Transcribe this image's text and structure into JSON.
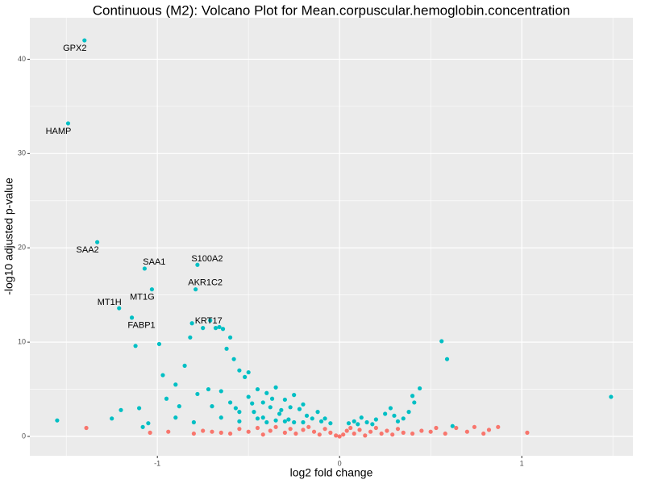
{
  "chart_data": {
    "type": "scatter",
    "title": "Continuous (M2): Volcano Plot for Mean.corpuscular.hemoglobin.concentration",
    "x_label": "log2 fold change",
    "y_label": "-log10 adjusted p-value",
    "xlim": [
      -1.7,
      1.61
    ],
    "ylim": [
      -2.05,
      44.4
    ],
    "xticks": [
      -1,
      0,
      1
    ],
    "yticks": [
      0,
      10,
      20,
      30,
      40
    ],
    "grid": true,
    "series": [
      {
        "color": "#00BFC4",
        "x": [
          -1.4,
          -1.49,
          -1.33,
          -1.07,
          -0.78,
          -0.79,
          -1.03,
          -1.21,
          -1.14,
          -0.71
        ],
        "values": [
          42.0,
          33.2,
          20.6,
          17.8,
          18.2,
          15.6,
          15.6,
          13.6,
          12.6,
          12.3
        ],
        "labels": [
          "GPX2",
          "HAMP",
          "SAA2",
          "SAA1",
          "S100A2",
          "AKR1C2",
          "MT1G",
          "MT1H",
          "FABP1",
          "KRT17"
        ]
      },
      {
        "color": "#00BFC4",
        "x": [
          -1.55,
          -1.25,
          -1.2,
          -1.1,
          -1.05,
          -1.08,
          -1.12,
          -0.99,
          -0.97,
          -0.9,
          -0.85,
          -0.82,
          -0.81,
          -0.75,
          -0.68,
          -0.66,
          -0.64,
          -0.6,
          -0.58,
          -0.62,
          -0.55,
          -0.52,
          -0.5,
          -0.78,
          -0.72,
          -0.7,
          -0.65,
          -0.6,
          -0.55,
          -0.5,
          -0.48,
          -0.45,
          -0.42,
          -0.4,
          -0.38,
          -0.35,
          -0.33,
          -0.3,
          -0.28,
          -0.25,
          -0.22,
          -0.2,
          -0.18,
          -0.15,
          -0.12,
          -0.1,
          -0.08,
          -0.05,
          -0.4,
          -0.35,
          -0.3,
          -0.25,
          -0.2,
          -0.45,
          -0.55,
          -0.65,
          -0.8,
          -0.9,
          -0.95,
          -0.88,
          -0.42,
          -0.32,
          -0.27,
          -0.37,
          -0.47,
          -0.57,
          0.05,
          0.08,
          0.12,
          0.15,
          0.2,
          0.25,
          0.28,
          0.3,
          0.32,
          0.35,
          0.38,
          0.4,
          0.44,
          0.41,
          0.56,
          0.59,
          0.62,
          1.49,
          0.18,
          0.1
        ],
        "values": [
          1.7,
          1.9,
          2.8,
          3.0,
          1.4,
          1.0,
          9.6,
          9.8,
          6.5,
          5.5,
          7.5,
          10.5,
          12.0,
          11.5,
          11.5,
          11.6,
          11.4,
          10.5,
          8.2,
          9.3,
          7.0,
          6.3,
          6.8,
          4.5,
          5.0,
          3.2,
          4.8,
          3.6,
          2.6,
          4.2,
          3.5,
          5.0,
          2.0,
          4.6,
          3.1,
          5.2,
          2.4,
          3.9,
          1.8,
          4.4,
          2.9,
          3.4,
          2.2,
          1.9,
          2.6,
          1.6,
          1.9,
          1.4,
          1.5,
          1.7,
          1.6,
          1.5,
          1.5,
          1.9,
          1.6,
          2.0,
          1.5,
          2.0,
          4.0,
          3.2,
          3.6,
          2.8,
          3.1,
          4.0,
          2.6,
          3.0,
          1.4,
          1.6,
          2.0,
          1.5,
          1.8,
          2.4,
          3.0,
          2.2,
          1.6,
          1.9,
          2.6,
          4.3,
          5.1,
          3.6,
          10.1,
          8.2,
          1.1,
          4.2,
          1.3,
          1.3
        ]
      },
      {
        "color": "#F8766D",
        "x": [
          -1.39,
          -1.04,
          -0.94,
          -0.8,
          -0.7,
          -0.6,
          -0.55,
          -0.5,
          -0.45,
          -0.42,
          -0.38,
          -0.35,
          -0.3,
          -0.27,
          -0.24,
          -0.2,
          -0.17,
          -0.14,
          -0.11,
          -0.08,
          -0.05,
          -0.02,
          0.0,
          0.02,
          0.04,
          0.06,
          0.08,
          0.11,
          0.14,
          0.17,
          0.2,
          0.23,
          0.26,
          0.29,
          0.32,
          0.35,
          0.4,
          0.45,
          0.5,
          0.53,
          0.58,
          0.64,
          0.7,
          0.74,
          0.79,
          0.82,
          0.87,
          1.03,
          -0.65,
          -0.75
        ],
        "values": [
          0.9,
          0.4,
          0.5,
          0.3,
          0.5,
          0.3,
          0.8,
          0.5,
          0.9,
          0.2,
          0.6,
          1.0,
          0.4,
          0.8,
          0.3,
          0.7,
          1.0,
          0.5,
          0.2,
          0.8,
          0.4,
          0.1,
          0.0,
          0.2,
          0.6,
          0.9,
          0.3,
          0.7,
          0.1,
          0.5,
          0.9,
          0.3,
          0.6,
          0.2,
          0.8,
          0.4,
          0.3,
          0.6,
          0.5,
          0.9,
          0.3,
          0.9,
          0.5,
          1.0,
          0.3,
          0.7,
          1.0,
          0.4,
          0.4,
          0.6
        ]
      }
    ]
  }
}
